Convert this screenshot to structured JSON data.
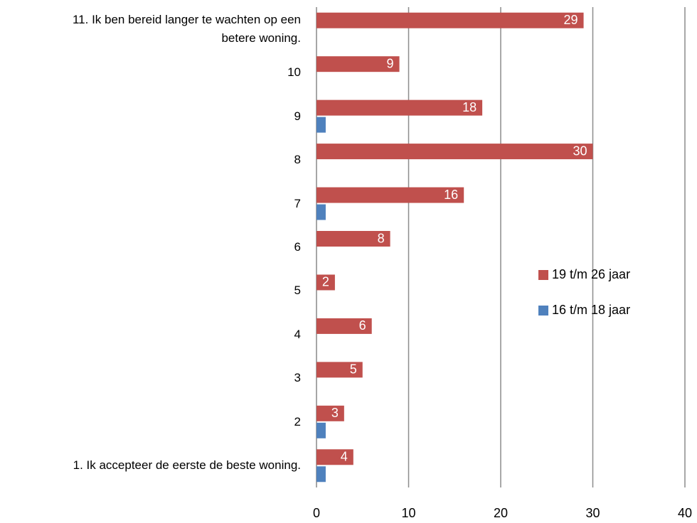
{
  "chart_data": {
    "type": "bar",
    "orientation": "horizontal",
    "categories": [
      "1. Ik accepteer de eerste de beste woning.",
      "2",
      "3",
      "4",
      "5",
      "6",
      "7",
      "8",
      "9",
      "10",
      "11.  Ik ben bereid langer te wachten op een betere woning."
    ],
    "series": [
      {
        "name": "19 t/m 26 jaar",
        "color": "#c0504d",
        "values": [
          4,
          3,
          5,
          6,
          2,
          8,
          16,
          30,
          18,
          9,
          29
        ]
      },
      {
        "name": "16 t/m 18 jaar",
        "color": "#4f81bd",
        "values": [
          1,
          1,
          0,
          0,
          0,
          0,
          1,
          0,
          1,
          0,
          0
        ]
      }
    ],
    "xlim": [
      0,
      40
    ],
    "xticks": [
      0,
      10,
      20,
      30,
      40
    ],
    "grid": true,
    "legend": "right"
  }
}
